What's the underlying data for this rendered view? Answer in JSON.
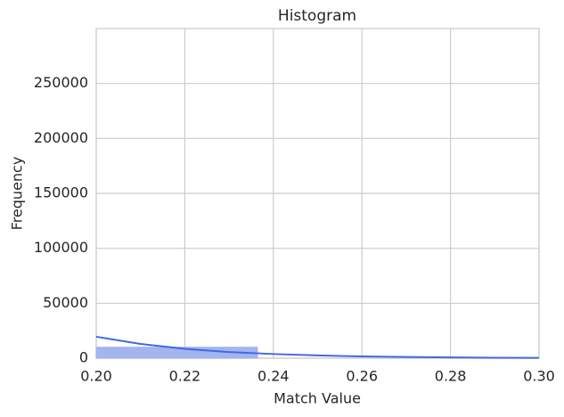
{
  "chart_data": {
    "type": "histogram",
    "title": "Histogram",
    "x_label": "Match Value",
    "y_label": "Frequency",
    "bins": [
      0.2,
      0.2364
    ],
    "values": [
      10000
    ],
    "color": "#a3b4ef",
    "kde": {
      "x": [
        0.2,
        0.21,
        0.22,
        0.23,
        0.24,
        0.25,
        0.26,
        0.27,
        0.28,
        0.29,
        0.3
      ],
      "values": [
        19500,
        13000,
        8500,
        5600,
        3800,
        2500,
        1600,
        1100,
        700,
        450,
        300
      ],
      "color": "#4169e1"
    },
    "xlim": [
      0.2,
      0.3
    ],
    "xticks": [
      {
        "value": 0.2,
        "label": "0.20"
      },
      0.22,
      0.24,
      0.26,
      0.28,
      {
        "value": 0.3,
        "label": "0.30"
      }
    ],
    "ylim": [
      0,
      300000
    ],
    "yticks": [
      0,
      50000,
      100000,
      150000,
      200000,
      250000
    ],
    "grid": true
  }
}
